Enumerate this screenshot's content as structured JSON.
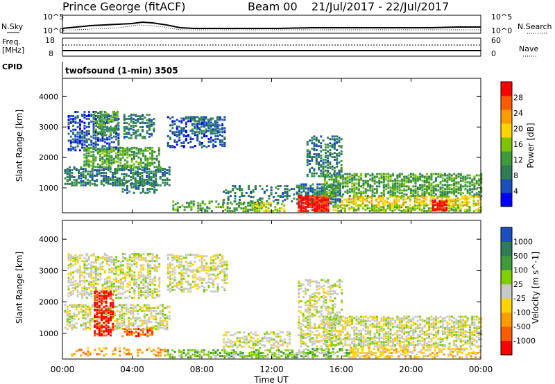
{
  "header": {
    "station": "Prince George (fitACF)",
    "beam": "Beam 00",
    "date_range": "21/Jul/2017 - 22/Jul/2017"
  },
  "strips": {
    "nsky_label": "N.Sky",
    "nsearch_label": "N.Search",
    "left_ticks": [
      "10^5",
      "10^0"
    ],
    "right_ticks": [
      "10^5",
      "10^0"
    ],
    "freq_label": "Freq.",
    "freq_unit": "[MHz]",
    "freq_ticks": [
      "18",
      "8"
    ],
    "nave_label": "Nave",
    "nave_ticks": [
      "60",
      "0"
    ],
    "cpid_label": "CPID",
    "cpid_value": "twofsound (1-min) 3505"
  },
  "chart_data": [
    {
      "type": "heatmap",
      "name": "power",
      "ylabel": "Slant Range [km]",
      "yticks": [
        1000,
        2000,
        3000,
        4000
      ],
      "ylim": [
        180,
        4600
      ],
      "colorbar": {
        "label": "Power [dB]",
        "ticks": [
          "28",
          "24",
          "20",
          "16",
          "12",
          "8",
          "4"
        ],
        "colors": [
          "#0000ff",
          "#1b4fbf",
          "#2e7d55",
          "#3e9b3a",
          "#7fc400",
          "#ffd200",
          "#ff9a00",
          "#ff5a00",
          "#ff0000"
        ]
      },
      "blobs": [
        {
          "t0": 0.1,
          "t1": 6.1,
          "r0": 1050,
          "r1": 1650,
          "level": 2,
          "d": 0.55
        },
        {
          "t0": 0.3,
          "t1": 3.2,
          "r0": 2200,
          "r1": 3500,
          "level": 1,
          "d": 0.4
        },
        {
          "t0": 1.2,
          "t1": 5.6,
          "r0": 1650,
          "r1": 2300,
          "level": 3,
          "d": 0.55
        },
        {
          "t0": 1.8,
          "t1": 3.2,
          "r0": 2700,
          "r1": 3500,
          "level": 3,
          "d": 0.5
        },
        {
          "t0": 3.5,
          "t1": 5.3,
          "r0": 2600,
          "r1": 3400,
          "level": 2,
          "d": 0.45
        },
        {
          "t0": 3.4,
          "t1": 5.4,
          "r0": 800,
          "r1": 1200,
          "level": 2,
          "d": 0.35
        },
        {
          "t0": 6.0,
          "t1": 9.3,
          "r0": 2300,
          "r1": 3300,
          "level": 1,
          "d": 0.3
        },
        {
          "t0": 7.4,
          "t1": 9.0,
          "r0": 2750,
          "r1": 3300,
          "level": 2,
          "d": 0.45
        },
        {
          "t0": 6.3,
          "t1": 11.5,
          "r0": 200,
          "r1": 520,
          "level": 3,
          "d": 0.35
        },
        {
          "t0": 9.2,
          "t1": 13.3,
          "r0": 480,
          "r1": 1050,
          "level": 2,
          "d": 0.25
        },
        {
          "t0": 10.2,
          "t1": 12.8,
          "r0": 200,
          "r1": 480,
          "level": 4,
          "d": 0.45
        },
        {
          "t0": 13.4,
          "t1": 16.0,
          "r0": 450,
          "r1": 1100,
          "level": 2,
          "d": 0.6
        },
        {
          "t0": 13.5,
          "t1": 15.3,
          "r0": 200,
          "r1": 700,
          "level": 8,
          "d": 0.75
        },
        {
          "t0": 14.0,
          "t1": 16.0,
          "r0": 1350,
          "r1": 2700,
          "level": 2,
          "d": 0.4
        },
        {
          "t0": 15.0,
          "t1": 24.0,
          "r0": 700,
          "r1": 1450,
          "level": 3,
          "d": 0.55
        },
        {
          "t0": 16.0,
          "t1": 24.0,
          "r0": 400,
          "r1": 700,
          "level": 5,
          "d": 0.5
        },
        {
          "t0": 15.5,
          "t1": 24.0,
          "r0": 200,
          "r1": 420,
          "level": 4,
          "d": 0.5
        },
        {
          "t0": 21.2,
          "t1": 22.0,
          "r0": 220,
          "r1": 560,
          "level": 8,
          "d": 0.8
        }
      ]
    },
    {
      "type": "heatmap",
      "name": "velocity",
      "ylabel": "Slant Range [km]",
      "yticks": [
        1000,
        2000,
        3000,
        4000
      ],
      "ylim": [
        180,
        4600
      ],
      "colorbar": {
        "label": "Velocity [m s^-1]",
        "ticks": [
          "1000",
          "500",
          "100",
          "25",
          "-25",
          "-100",
          "-500",
          "-1000"
        ],
        "colors": [
          "#ff0000",
          "#ff5a00",
          "#ff9a00",
          "#ffd200",
          "#c8c8c8",
          "#7fd000",
          "#3e9b3a",
          "#2e7d55",
          "#1b4fbf"
        ]
      },
      "blobs": [
        {
          "t0": 0.1,
          "t1": 6.1,
          "r0": 1100,
          "r1": 1900,
          "level": 4,
          "d": 0.45
        },
        {
          "t0": 0.3,
          "t1": 5.5,
          "r0": 2100,
          "r1": 3500,
          "level": 4,
          "d": 0.45
        },
        {
          "t0": 1.8,
          "t1": 2.9,
          "r0": 900,
          "r1": 2300,
          "level": 0,
          "d": 0.55
        },
        {
          "t0": 3.4,
          "t1": 5.2,
          "r0": 880,
          "r1": 1150,
          "level": 1,
          "d": 0.55
        },
        {
          "t0": 6.0,
          "t1": 9.4,
          "r0": 2300,
          "r1": 3500,
          "level": 4,
          "d": 0.4
        },
        {
          "t0": 0.5,
          "t1": 6.0,
          "r0": 260,
          "r1": 500,
          "level": 2,
          "d": 0.25
        },
        {
          "t0": 6.0,
          "t1": 13.0,
          "r0": 200,
          "r1": 470,
          "level": 5,
          "d": 0.5
        },
        {
          "t0": 9.2,
          "t1": 13.0,
          "r0": 500,
          "r1": 1000,
          "level": 4,
          "d": 0.35
        },
        {
          "t0": 13.0,
          "t1": 16.5,
          "r0": 200,
          "r1": 500,
          "level": 5,
          "d": 0.5
        },
        {
          "t0": 13.5,
          "t1": 16.0,
          "r0": 550,
          "r1": 2700,
          "level": 4,
          "d": 0.35
        },
        {
          "t0": 15.0,
          "t1": 24.0,
          "r0": 550,
          "r1": 1500,
          "level": 4,
          "d": 0.55
        },
        {
          "t0": 16.5,
          "t1": 24.0,
          "r0": 200,
          "r1": 520,
          "level": 3,
          "d": 0.4
        }
      ]
    }
  ],
  "x_axis": {
    "label": "Time UT",
    "ticks": [
      "00:00",
      "04:00",
      "08:00",
      "12:00",
      "16:00",
      "20:00",
      "00:00"
    ],
    "range_hours": [
      0,
      24
    ]
  }
}
